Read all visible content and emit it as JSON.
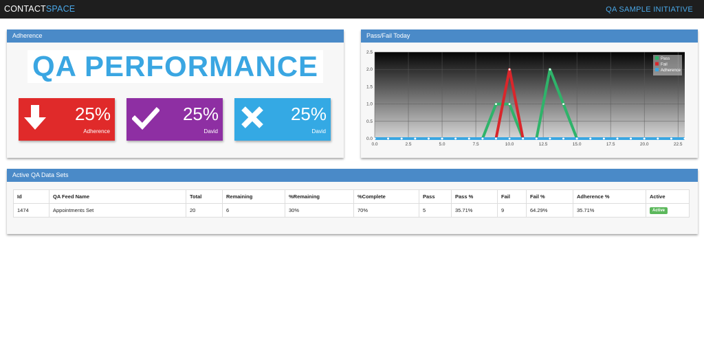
{
  "header": {
    "brand_part1": "CONTACT",
    "brand_part2": "SPACE",
    "initiative": "QA SAMPLE INITIATIVE"
  },
  "adherence": {
    "title": "Adherence",
    "banner": "QA  PERFORMANCE",
    "stats": [
      {
        "value": "25%",
        "label": "Adherence",
        "icon": "arrow-down-icon",
        "color": "#e02a2a"
      },
      {
        "value": "25%",
        "label": "David",
        "icon": "checkmark-icon",
        "color": "#8e2fa3"
      },
      {
        "value": "25%",
        "label": "David",
        "icon": "cross-icon",
        "color": "#34a9e4"
      }
    ]
  },
  "passfail": {
    "title": "Pass/Fail Today"
  },
  "chart_data": {
    "type": "line",
    "x": [
      0,
      1,
      2,
      3,
      4,
      5,
      6,
      7,
      8,
      9,
      10,
      11,
      12,
      13,
      14,
      15,
      16,
      17,
      18,
      19,
      20,
      21,
      22,
      23
    ],
    "xticks": [
      "0.0",
      "2.5",
      "5.0",
      "7.5",
      "10.0",
      "12.5",
      "15.0",
      "17.5",
      "20.0",
      "22.5"
    ],
    "yticks": [
      "0.0",
      "0.5",
      "1.0",
      "1.5",
      "2.0",
      "2.5"
    ],
    "xlim": [
      0,
      23
    ],
    "ylim": [
      0,
      2.5
    ],
    "legend_position": "top-right",
    "series": [
      {
        "name": "Pass",
        "color": "#2fb36a",
        "values": [
          0,
          0,
          0,
          0,
          0,
          0,
          0,
          0,
          0,
          1,
          1,
          0,
          0,
          2,
          1,
          0,
          0,
          0,
          0,
          0,
          0,
          0,
          0,
          0
        ]
      },
      {
        "name": "Fail",
        "color": "#d9262b",
        "values": [
          0,
          0,
          0,
          0,
          0,
          0,
          0,
          0,
          0,
          0,
          2,
          0,
          0,
          0,
          0,
          0,
          0,
          0,
          0,
          0,
          0,
          0,
          0,
          0
        ]
      },
      {
        "name": "Adherence",
        "color": "#3aa6e2",
        "values": [
          0,
          0,
          0,
          0,
          0,
          0,
          0,
          0,
          0,
          0,
          0,
          0,
          0,
          0,
          0,
          0,
          0,
          0,
          0,
          0,
          0,
          0,
          0,
          0
        ]
      }
    ]
  },
  "datasets": {
    "title": "Active QA Data Sets",
    "columns": [
      "Id",
      "QA Feed Name",
      "Total",
      "Remaining",
      "%Remaining",
      "%Complete",
      "Pass",
      "Pass %",
      "Fail",
      "Fail %",
      "Adherence %",
      "Active"
    ],
    "rows": [
      [
        "1474",
        "Appointments Set",
        "20",
        "6",
        "30%",
        "70%",
        "5",
        "35.71%",
        "9",
        "64.29%",
        "35.71%",
        "Active"
      ]
    ]
  }
}
